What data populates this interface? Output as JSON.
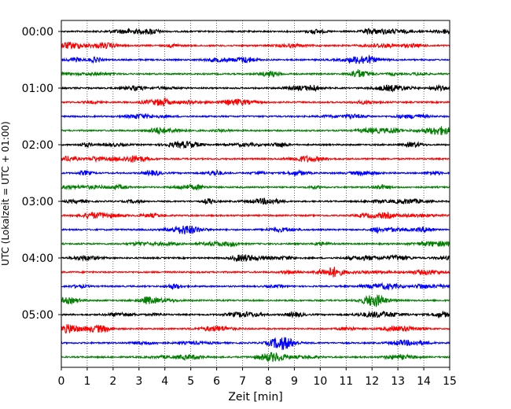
{
  "chart_data": {
    "type": "line",
    "title": "",
    "xlabel": "Zeit  [min]",
    "ylabel": "UTC (Lokalzeit = UTC + 01:00)",
    "xlim": [
      0,
      15
    ],
    "xticks": [
      "0",
      "1",
      "2",
      "3",
      "4",
      "5",
      "6",
      "7",
      "8",
      "9",
      "10",
      "11",
      "12",
      "13",
      "14",
      "15"
    ],
    "hour_labels": [
      "00:00",
      "01:00",
      "02:00",
      "03:00",
      "04:00",
      "05:00"
    ],
    "vertical_grid": true,
    "grid_style": "dotted",
    "trace_count": 24,
    "traces_per_hour": 4,
    "trace_colors": [
      "#000000",
      "#ff0000",
      "#0000ff",
      "#007f00"
    ]
  }
}
